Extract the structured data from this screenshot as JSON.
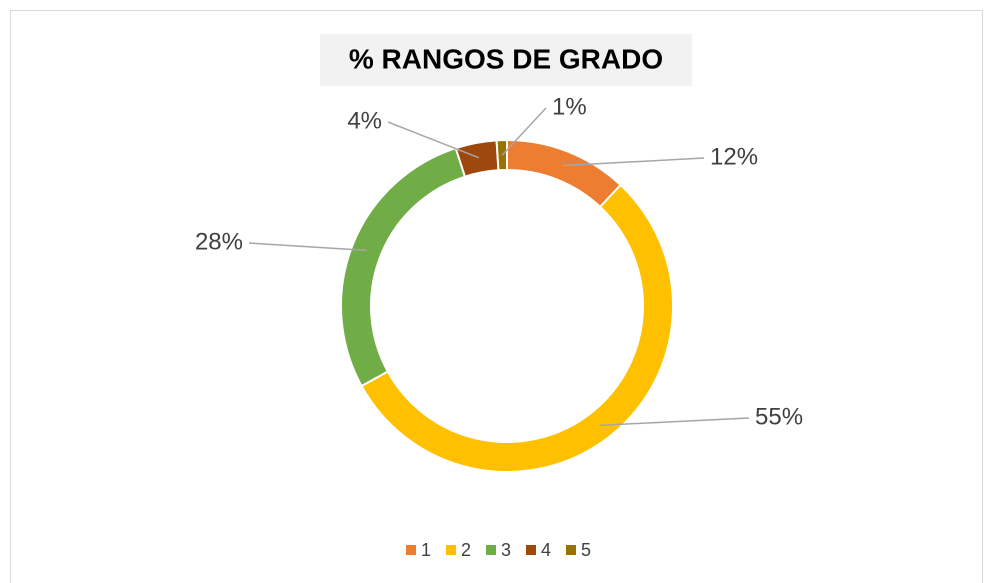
{
  "chart_data": {
    "type": "donut",
    "title": "% RANGOS DE GRADO",
    "categories": [
      "1",
      "2",
      "3",
      "4",
      "5"
    ],
    "values": [
      12,
      55,
      28,
      4,
      1
    ],
    "value_labels": [
      "12%",
      "55%",
      "28%",
      "4%",
      "1%"
    ],
    "colors": [
      "#ED7D31",
      "#FFC000",
      "#70AD47",
      "#9E480E",
      "#997300"
    ],
    "legend": "bottom"
  }
}
